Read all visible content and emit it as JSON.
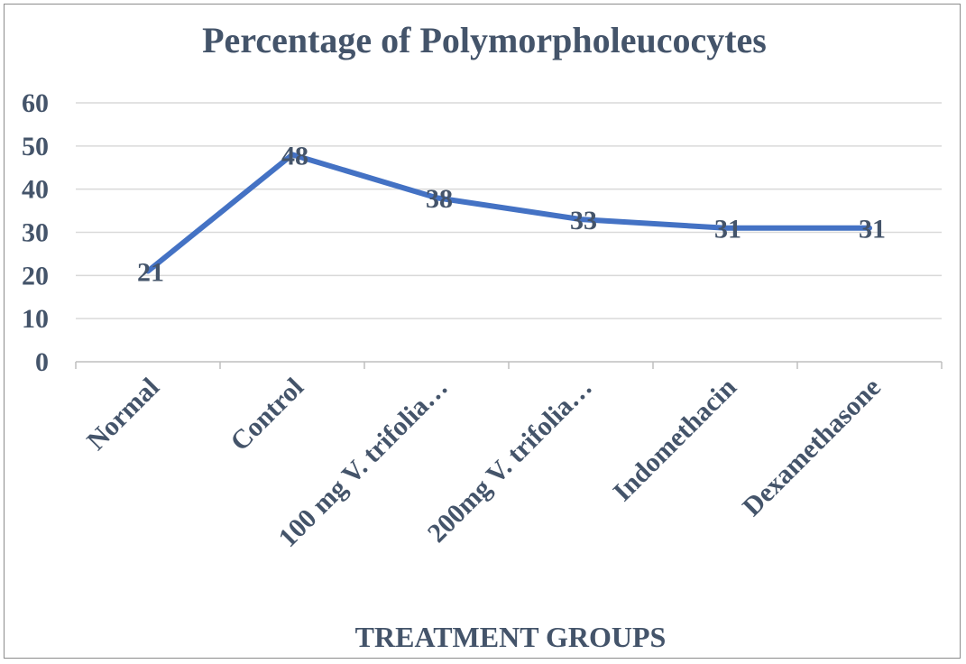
{
  "chart_data": {
    "type": "line",
    "title": "Percentage of Polymorpholeucocytes",
    "xlabel": "TREATMENT GROUPS",
    "ylabel": "",
    "categories": [
      "Normal",
      "Control",
      "100 mg V. trifolia…",
      "200mg V. trifolia…",
      "Indomethacin",
      "Dexamethasone"
    ],
    "series": [
      {
        "values": [
          21,
          48,
          38,
          33,
          31,
          31
        ],
        "color": "#4472c4"
      }
    ],
    "data_labels": [
      "21",
      "48",
      "38",
      "33",
      "31",
      "31"
    ],
    "ylim": [
      0,
      60
    ],
    "yticks": [
      0,
      10,
      20,
      30,
      40,
      50,
      60
    ],
    "grid": true,
    "legend": "none"
  }
}
